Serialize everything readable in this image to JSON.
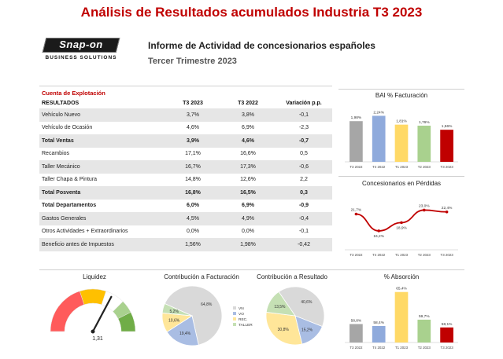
{
  "header": {
    "title": "Análisis de Resultados acumulados Industria T3 2023",
    "logo_text": "Snap-on",
    "logo_sub": "BUSINESS SOLUTIONS",
    "report_title": "Informe de Actividad de concesionarios españoles",
    "report_subtitle": "Tercer Trimestre 2023"
  },
  "table": {
    "section_label": "Cuenta de Explotación",
    "columns": [
      "RESULTADOS",
      "T3 2023",
      "T3 2022",
      "Variación p.p."
    ],
    "rows": [
      {
        "label": "Vehículo Nuevo",
        "t3_2023": "3,7%",
        "t3_2022": "3,8%",
        "var": "-0,1",
        "bold": false
      },
      {
        "label": "Vehículo de Ocasión",
        "t3_2023": "4,6%",
        "t3_2022": "6,9%",
        "var": "-2,3",
        "bold": false
      },
      {
        "label": "Total Ventas",
        "t3_2023": "3,9%",
        "t3_2022": "4,6%",
        "var": "-0,7",
        "bold": true
      },
      {
        "label": "Recambios",
        "t3_2023": "17,1%",
        "t3_2022": "16,6%",
        "var": "0,5",
        "bold": false
      },
      {
        "label": "Taller Mecánico",
        "t3_2023": "16,7%",
        "t3_2022": "17,3%",
        "var": "-0,6",
        "bold": false
      },
      {
        "label": "Taller Chapa & Pintura",
        "t3_2023": "14,8%",
        "t3_2022": "12,6%",
        "var": "2,2",
        "bold": false
      },
      {
        "label": "Total Posventa",
        "t3_2023": "16,8%",
        "t3_2022": "16,5%",
        "var": "0,3",
        "bold": true
      },
      {
        "label": "Total Departamentos",
        "t3_2023": "6,0%",
        "t3_2022": "6,9%",
        "var": "-0,9",
        "bold": true
      },
      {
        "label": "Gastos Generales",
        "t3_2023": "4,5%",
        "t3_2022": "4,9%",
        "var": "-0,4",
        "bold": false
      },
      {
        "label": "Otros Actividades + Extraordinarios",
        "t3_2023": "0,0%",
        "t3_2022": "0,0%",
        "var": "-0,1",
        "bold": false
      },
      {
        "label": "Beneficio antes de Impuestos",
        "t3_2023": "1,56%",
        "t3_2022": "1,98%",
        "var": "-0,42",
        "bold": false
      }
    ]
  },
  "chart_data": [
    {
      "type": "bar",
      "title": "BAI % Facturación",
      "categories": [
        "T3 2022",
        "T4 2022",
        "T1 2023",
        "T2 2023",
        "T3 2023"
      ],
      "values": [
        1.98,
        2.24,
        1.81,
        1.76,
        1.56
      ],
      "labels": [
        "1,98%",
        "2,24%",
        "1,81%",
        "1,76%",
        "1,56%"
      ],
      "colors": [
        "#a6a6a6",
        "#8faadc",
        "#ffd966",
        "#a9d18e",
        "#c00000"
      ],
      "ylim": [
        0,
        2.6
      ]
    },
    {
      "type": "line",
      "title": "Concesionarios en Pérdidas",
      "categories": [
        "T3 2022",
        "T4 2022",
        "T1 2023",
        "T2 2023",
        "T3 2023"
      ],
      "values": [
        21.7,
        16.2,
        18.9,
        23.0,
        22.4
      ],
      "labels": [
        "21,7%",
        "16,2%",
        "18,9%",
        "23,0%",
        "22,4%"
      ],
      "color": "#c00000",
      "ylim": [
        10,
        28
      ]
    },
    {
      "type": "gauge",
      "title": "Liquidez",
      "value": 1.31,
      "label": "1,31",
      "range": [
        0,
        2
      ],
      "segments": [
        {
          "from": 0,
          "to": 0.8,
          "color": "#ff5b5b"
        },
        {
          "from": 0.8,
          "to": 1.2,
          "color": "#ffc000"
        },
        {
          "from": 1.2,
          "to": 1.5,
          "color": "#ffffff"
        },
        {
          "from": 1.5,
          "to": 1.7,
          "color": "#a9d18e"
        },
        {
          "from": 1.7,
          "to": 2.0,
          "color": "#70ad47"
        }
      ]
    },
    {
      "type": "pie",
      "title": "Contribución a Facturación",
      "slices": [
        {
          "name": "VN",
          "value": 64.8,
          "label": "64,8%",
          "color": "#d9d9d9"
        },
        {
          "name": "VO",
          "value": 19.4,
          "label": "19,4%",
          "color": "#a9bde3"
        },
        {
          "name": "REC.",
          "value": 10.6,
          "label": "10,6%",
          "color": "#ffe699"
        },
        {
          "name": "TALLER",
          "value": 5.2,
          "label": "5,2%",
          "color": "#c5e0b4"
        }
      ],
      "legend": "right"
    },
    {
      "type": "pie",
      "title": "Contribución a Resultado",
      "slices": [
        {
          "name": "VN",
          "value": 40.6,
          "label": "40,6%",
          "color": "#d9d9d9"
        },
        {
          "name": "VO",
          "value": 15.2,
          "label": "15,2%",
          "color": "#a9bde3"
        },
        {
          "name": "REC.",
          "value": 30.8,
          "label": "30,8%",
          "color": "#ffe699"
        },
        {
          "name": "TALLER",
          "value": 13.5,
          "label": "13,5%",
          "color": "#c5e0b4"
        }
      ]
    },
    {
      "type": "bar",
      "title": "% Absorción",
      "categories": [
        "T3 2022",
        "T4 2022",
        "T1 2023",
        "T2 2023",
        "T3 2023"
      ],
      "values": [
        58.8,
        58.4,
        65.4,
        59.7,
        58.1
      ],
      "labels": [
        "58,8%",
        "58,4%",
        "65,4%",
        "59,7%",
        "58,1%"
      ],
      "colors": [
        "#a6a6a6",
        "#8faadc",
        "#ffd966",
        "#a9d18e",
        "#c00000"
      ],
      "ylim": [
        55,
        66
      ]
    }
  ]
}
